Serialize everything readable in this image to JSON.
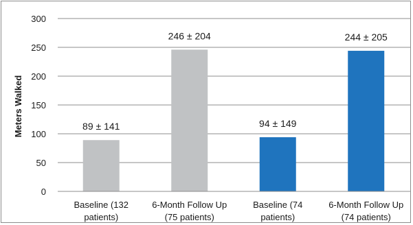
{
  "chart_data": {
    "type": "bar",
    "title": "",
    "xlabel": "",
    "ylabel": "Meters Walked",
    "ylim": [
      0,
      300
    ],
    "yticks": [
      0,
      50,
      100,
      150,
      200,
      250,
      300
    ],
    "grid": true,
    "legend": "none",
    "categories": [
      [
        "Baseline (132",
        "patients)"
      ],
      [
        "6-Month Follow Up",
        "(75 patients)"
      ],
      [
        "Baseline (74",
        "patients)"
      ],
      [
        "6-Month Follow Up",
        "(74 patients)"
      ]
    ],
    "values": [
      89,
      246,
      94,
      244
    ],
    "data_labels": [
      "89 ± 141",
      "246 ± 204",
      "94 ± 149",
      "244 ± 205"
    ],
    "bar_colors": [
      "#c0c2c4",
      "#c0c2c4",
      "#1f74be",
      "#1f74be"
    ],
    "gridline_color": "#8c8c8c"
  }
}
